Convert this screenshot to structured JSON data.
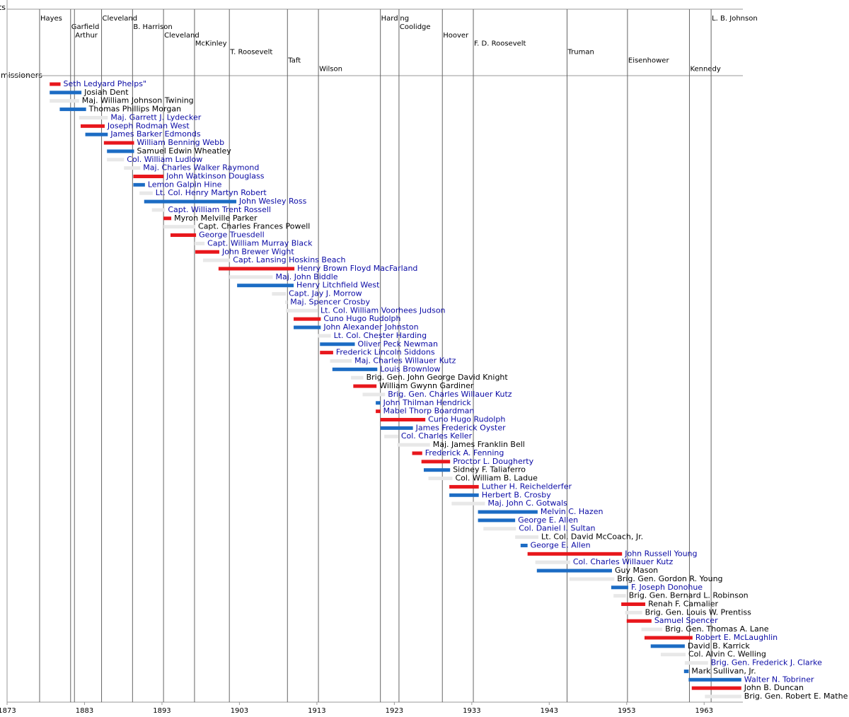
{
  "chart_data": {
    "type": "timeline",
    "president_heading": "Presidents",
    "row_heading": "Commissioners",
    "xlim": [
      1873,
      1968
    ],
    "xticks": [
      1873,
      1883,
      1893,
      1903,
      1913,
      1923,
      1933,
      1943,
      1953,
      1963
    ],
    "presidents": {
      "names": [
        "Hayes",
        "Garfield",
        "Arthur",
        "Cleveland",
        "B. Harrison",
        "Cleveland",
        "McKinley",
        "T. Roosevelt",
        "Taft",
        "Wilson",
        "Harding",
        "Coolidge",
        "Hoover",
        "F. D. Roosevelt",
        "Truman",
        "Eisenhower",
        "Kennedy",
        "L. B. Johnson"
      ],
      "starts": [
        1877.2,
        1881.2,
        1881.7,
        1885.2,
        1889.2,
        1893.2,
        1897.2,
        1901.7,
        1909.2,
        1913.2,
        1921.2,
        1923.6,
        1929.2,
        1933.2,
        1945.3,
        1953.1,
        1961.1,
        1963.9
      ]
    },
    "categories": [
      "Seth Ledyard Phelps\"",
      "Josiah Dent",
      "Maj. William Johnson Twining",
      "Thomas Phillips Morgan",
      "Maj. Garrett J. Lydecker",
      "Joseph Rodman West",
      "James Barker Edmonds",
      "William Benning Webb",
      "Samuel Edwin Wheatley",
      "Col. William Ludlow",
      "Maj. Charles Walker Raymond",
      "John Watkinson Douglass",
      "Lemon Galpin Hine",
      "Lt. Col. Henry Martyn Robert",
      "John Wesley Ross",
      "Capt. William Trent Rossell",
      "Myron Melville Parker",
      "Capt. Charles Frances Powell",
      "George Truesdell",
      "Capt. William Murray Black",
      "John Brewer Wight",
      "Capt. Lansing Hoskins Beach",
      "Henry Brown Floyd MacFarland",
      "Maj. John Biddle",
      "Henry Litchfield West",
      "Capt. Jay J. Morrow",
      "Maj. Spencer Crosby",
      "Lt. Col. William Voorhees Judson",
      "Cuno Hugo Rudolph",
      "John Alexander Johnston",
      "Lt. Col. Chester Harding",
      "Oliver Peck Newman",
      "Frederick Lincoln Siddons",
      "Maj. Charles Willauer Kutz",
      "Louis Brownlow",
      "Brig. Gen. John George David Knight",
      "William Gwynn Gardiner",
      "Brig. Gen. Charles Willauer Kutz",
      "John Thilman Hendrick",
      "Mabel Thorp Boardman",
      "Cuno Hugo Rudolph",
      "James Frederick Oyster",
      "Col. Charles Keller",
      "Maj. James Franklin Bell",
      "Frederick A. Fenning",
      "Proctor L. Dougherty",
      "Sidney F. Taliaferro",
      "Col. William B. Ladue",
      "Luther H. Reichelderfer",
      "Herbert B. Crosby",
      "Maj. John C. Gotwals",
      "Melvin C. Hazen",
      "George E. Allen",
      "Col. Daniel I. Sultan",
      "Lt. Col. David McCoach, Jr.",
      "George E. Allen",
      "John Russell Young",
      "Col. Charles Willauer Kutz",
      "Guy Mason",
      "Brig. Gen. Gordon R. Young",
      "F. Joseph Donohue",
      "Brig. Gen. Bernard L. Robinson",
      "Renah F. Camalier",
      "Brig. Gen. Louis W. Prentiss",
      "Samuel Spencer",
      "Brig. Gen. Thomas A. Lane",
      "Robert E. McLaughlin",
      "David B. Karrick",
      "Col. Alvin C. Welling",
      "Brig. Gen. Frederick J. Clarke",
      "Mark Sullivan, Jr.",
      "Walter N. Tobriner",
      "John B. Duncan",
      "Brig. Gen. Robert E. Mathe"
    ],
    "start": [
      1878.5,
      1878.5,
      1878.5,
      1879.8,
      1882.3,
      1882.5,
      1883.1,
      1885.5,
      1885.9,
      1885.9,
      1888.1,
      1889.3,
      1889.3,
      1890.1,
      1890.7,
      1891.7,
      1893.2,
      1893.2,
      1894.1,
      1897.2,
      1897.3,
      1898.3,
      1900.3,
      1901.7,
      1902.7,
      1907.2,
      1908.9,
      1909.0,
      1910.0,
      1910.0,
      1913.1,
      1913.4,
      1913.4,
      1914.7,
      1915.0,
      1917.4,
      1917.7,
      1918.9,
      1920.6,
      1920.6,
      1921.2,
      1921.2,
      1921.7,
      1923.4,
      1925.3,
      1926.5,
      1926.8,
      1927.4,
      1930.1,
      1930.1,
      1930.4,
      1933.8,
      1933.8,
      1934.5,
      1938.6,
      1939.3,
      1940.2,
      1941.2,
      1941.4,
      1945.6,
      1951.0,
      1951.3,
      1952.3,
      1952.8,
      1953.0,
      1954.9,
      1955.3,
      1956.1,
      1957.4,
      1960.5,
      1960.4,
      1961.0,
      1961.4,
      1963.1
    ],
    "end": [
      1879.9,
      1882.6,
      1882.3,
      1883.2,
      1886.0,
      1885.6,
      1886.0,
      1889.4,
      1889.4,
      1888.1,
      1890.2,
      1893.2,
      1890.8,
      1891.8,
      1902.6,
      1893.4,
      1894.2,
      1897.3,
      1897.4,
      1898.5,
      1900.4,
      1901.8,
      1910.1,
      1907.3,
      1910.0,
      1909.0,
      1909.2,
      1913.1,
      1913.5,
      1913.5,
      1914.8,
      1917.9,
      1915.1,
      1917.5,
      1920.8,
      1919.0,
      1920.7,
      1921.8,
      1921.2,
      1921.2,
      1927.0,
      1925.4,
      1923.5,
      1927.6,
      1926.6,
      1930.2,
      1930.2,
      1930.5,
      1933.9,
      1933.9,
      1934.7,
      1941.5,
      1938.6,
      1938.7,
      1941.6,
      1940.2,
      1952.4,
      1945.7,
      1951.1,
      1951.4,
      1953.2,
      1952.9,
      1955.4,
      1955.0,
      1956.2,
      1957.6,
      1961.5,
      1960.5,
      1960.6,
      1963.5,
      1961.0,
      1967.8,
      1967.8,
      1967.8
    ],
    "colors": [
      "#e8171c",
      "#1c6cc4",
      "#e8e8e8",
      "#1c6cc4",
      "#e8e8e8",
      "#e8171c",
      "#1c6cc4",
      "#e8171c",
      "#1c6cc4",
      "#e8e8e8",
      "#e8e8e8",
      "#e8171c",
      "#1c6cc4",
      "#e8e8e8",
      "#1c6cc4",
      "#e8e8e8",
      "#e8171c",
      "#e8e8e8",
      "#e8171c",
      "#e8e8e8",
      "#e8171c",
      "#e8e8e8",
      "#e8171c",
      "#e8e8e8",
      "#1c6cc4",
      "#e8e8e8",
      "#e8e8e8",
      "#e8e8e8",
      "#e8171c",
      "#1c6cc4",
      "#e8e8e8",
      "#1c6cc4",
      "#e8171c",
      "#e8e8e8",
      "#1c6cc4",
      "#e8e8e8",
      "#e8171c",
      "#e8e8e8",
      "#1c6cc4",
      "#e8171c",
      "#e8171c",
      "#1c6cc4",
      "#e8e8e8",
      "#e8e8e8",
      "#e8171c",
      "#e8171c",
      "#1c6cc4",
      "#e8e8e8",
      "#e8171c",
      "#1c6cc4",
      "#e8e8e8",
      "#1c6cc4",
      "#1c6cc4",
      "#e8e8e8",
      "#e8e8e8",
      "#1c6cc4",
      "#e8171c",
      "#e8e8e8",
      "#1c6cc4",
      "#e8e8e8",
      "#1c6cc4",
      "#e8e8e8",
      "#e8171c",
      "#e8e8e8",
      "#e8171c",
      "#e8e8e8",
      "#e8171c",
      "#1c6cc4",
      "#e8e8e8",
      "#e8e8e8",
      "#1c6cc4",
      "#1c6cc4",
      "#e8171c",
      "#e8e8e8"
    ],
    "label_colors": [
      "#0a0aa5",
      "#000000",
      "#000000",
      "#000000",
      "#0a0aa5",
      "#0a0aa5",
      "#0a0aa5",
      "#0a0aa5",
      "#000000",
      "#0a0aa5",
      "#0a0aa5",
      "#0a0aa5",
      "#0a0aa5",
      "#0a0aa5",
      "#0a0aa5",
      "#0a0aa5",
      "#000000",
      "#000000",
      "#0a0aa5",
      "#0a0aa5",
      "#0a0aa5",
      "#0a0aa5",
      "#0a0aa5",
      "#0a0aa5",
      "#0a0aa5",
      "#0a0aa5",
      "#0a0aa5",
      "#0a0aa5",
      "#0a0aa5",
      "#0a0aa5",
      "#0a0aa5",
      "#0a0aa5",
      "#0a0aa5",
      "#0a0aa5",
      "#0a0aa5",
      "#000000",
      "#000000",
      "#0a0aa5",
      "#0a0aa5",
      "#0a0aa5",
      "#0a0aa5",
      "#0a0aa5",
      "#0a0aa5",
      "#000000",
      "#0a0aa5",
      "#0a0aa5",
      "#000000",
      "#000000",
      "#0a0aa5",
      "#0a0aa5",
      "#0a0aa5",
      "#0a0aa5",
      "#0a0aa5",
      "#0a0aa5",
      "#000000",
      "#0a0aa5",
      "#0a0aa5",
      "#0a0aa5",
      "#000000",
      "#000000",
      "#0a0aa5",
      "#000000",
      "#000000",
      "#000000",
      "#0a0aa5",
      "#000000",
      "#0a0aa5",
      "#000000",
      "#000000",
      "#0a0aa5",
      "#000000",
      "#0a0aa5",
      "#000000",
      "#000000"
    ]
  }
}
